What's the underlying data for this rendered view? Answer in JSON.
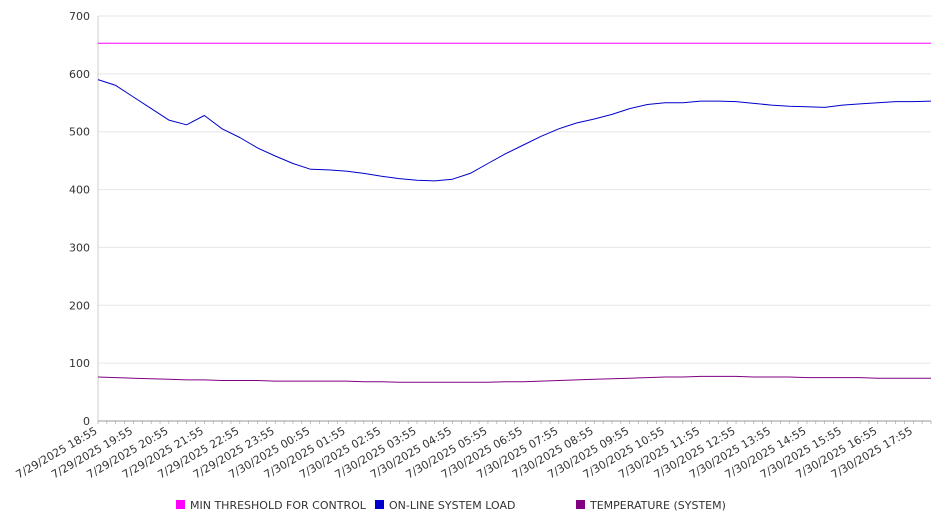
{
  "chart_data": {
    "type": "line",
    "title": "",
    "xlabel": "",
    "ylabel": "",
    "ylim": [
      0,
      700
    ],
    "yticks": [
      0,
      100,
      200,
      300,
      400,
      500,
      600,
      700
    ],
    "grid": "horizontal",
    "legend_placement": "bottom",
    "x_tick_labels": [
      "7/29/2025 18:55",
      "7/29/2025 19:55",
      "7/29/2025 20:55",
      "7/29/2025 21:55",
      "7/29/2025 22:55",
      "7/29/2025 23:55",
      "7/30/2025 00:55",
      "7/30/2025 01:55",
      "7/30/2025 02:55",
      "7/30/2025 03:55",
      "7/30/2025 04:55",
      "7/30/2025 05:55",
      "7/30/2025 06:55",
      "7/30/2025 07:55",
      "7/30/2025 08:55",
      "7/30/2025 09:55",
      "7/30/2025 10:55",
      "7/30/2025 11:55",
      "7/30/2025 12:55",
      "7/30/2025 13:55",
      "7/30/2025 14:55",
      "7/30/2025 15:55",
      "7/30/2025 16:55",
      "7/30/2025 17:55"
    ],
    "x": [
      "7/29/2025 18:55",
      "7/29/2025 19:25",
      "7/29/2025 19:55",
      "7/29/2025 20:25",
      "7/29/2025 20:55",
      "7/29/2025 21:25",
      "7/29/2025 21:55",
      "7/29/2025 22:25",
      "7/29/2025 22:55",
      "7/29/2025 23:25",
      "7/29/2025 23:55",
      "7/30/2025 00:25",
      "7/30/2025 00:55",
      "7/30/2025 01:25",
      "7/30/2025 01:55",
      "7/30/2025 02:25",
      "7/30/2025 02:55",
      "7/30/2025 03:25",
      "7/30/2025 03:55",
      "7/30/2025 04:25",
      "7/30/2025 04:55",
      "7/30/2025 05:25",
      "7/30/2025 05:55",
      "7/30/2025 06:25",
      "7/30/2025 06:55",
      "7/30/2025 07:25",
      "7/30/2025 07:55",
      "7/30/2025 08:25",
      "7/30/2025 08:55",
      "7/30/2025 09:25",
      "7/30/2025 09:55",
      "7/30/2025 10:25",
      "7/30/2025 10:55",
      "7/30/2025 11:25",
      "7/30/2025 11:55",
      "7/30/2025 12:25",
      "7/30/2025 12:55",
      "7/30/2025 13:25",
      "7/30/2025 13:55",
      "7/30/2025 14:25",
      "7/30/2025 14:55",
      "7/30/2025 15:25",
      "7/30/2025 15:55",
      "7/30/2025 16:25",
      "7/30/2025 16:55",
      "7/30/2025 17:25",
      "7/30/2025 17:55",
      "7/30/2025 18:25"
    ],
    "series": [
      {
        "name": "MIN THRESHOLD FOR CONTROL",
        "color": "#ff00ff",
        "values": [
          653,
          653,
          653,
          653,
          653,
          653,
          653,
          653,
          653,
          653,
          653,
          653,
          653,
          653,
          653,
          653,
          653,
          653,
          653,
          653,
          653,
          653,
          653,
          653,
          653,
          653,
          653,
          653,
          653,
          653,
          653,
          653,
          653,
          653,
          653,
          653,
          653,
          653,
          653,
          653,
          653,
          653,
          653,
          653,
          653,
          653,
          653,
          653
        ]
      },
      {
        "name": "ON-LINE SYSTEM LOAD",
        "color": "#0000cc",
        "values": [
          590,
          580,
          560,
          540,
          520,
          512,
          528,
          505,
          490,
          472,
          458,
          445,
          435,
          434,
          432,
          428,
          423,
          419,
          416,
          415,
          418,
          428,
          445,
          462,
          477,
          492,
          505,
          515,
          522,
          530,
          540,
          547,
          550,
          550,
          553,
          553,
          552,
          549,
          546,
          544,
          543,
          542,
          546,
          548,
          550,
          552,
          552,
          553
        ]
      },
      {
        "name": "TEMPERATURE (SYSTEM)",
        "color": "#800080",
        "values": [
          76,
          75,
          74,
          73,
          72,
          71,
          71,
          70,
          70,
          70,
          69,
          69,
          69,
          69,
          69,
          68,
          68,
          67,
          67,
          67,
          67,
          67,
          67,
          68,
          68,
          69,
          70,
          71,
          72,
          73,
          74,
          75,
          76,
          76,
          77,
          77,
          77,
          76,
          76,
          76,
          75,
          75,
          75,
          75,
          74,
          74,
          74,
          74
        ]
      }
    ]
  }
}
